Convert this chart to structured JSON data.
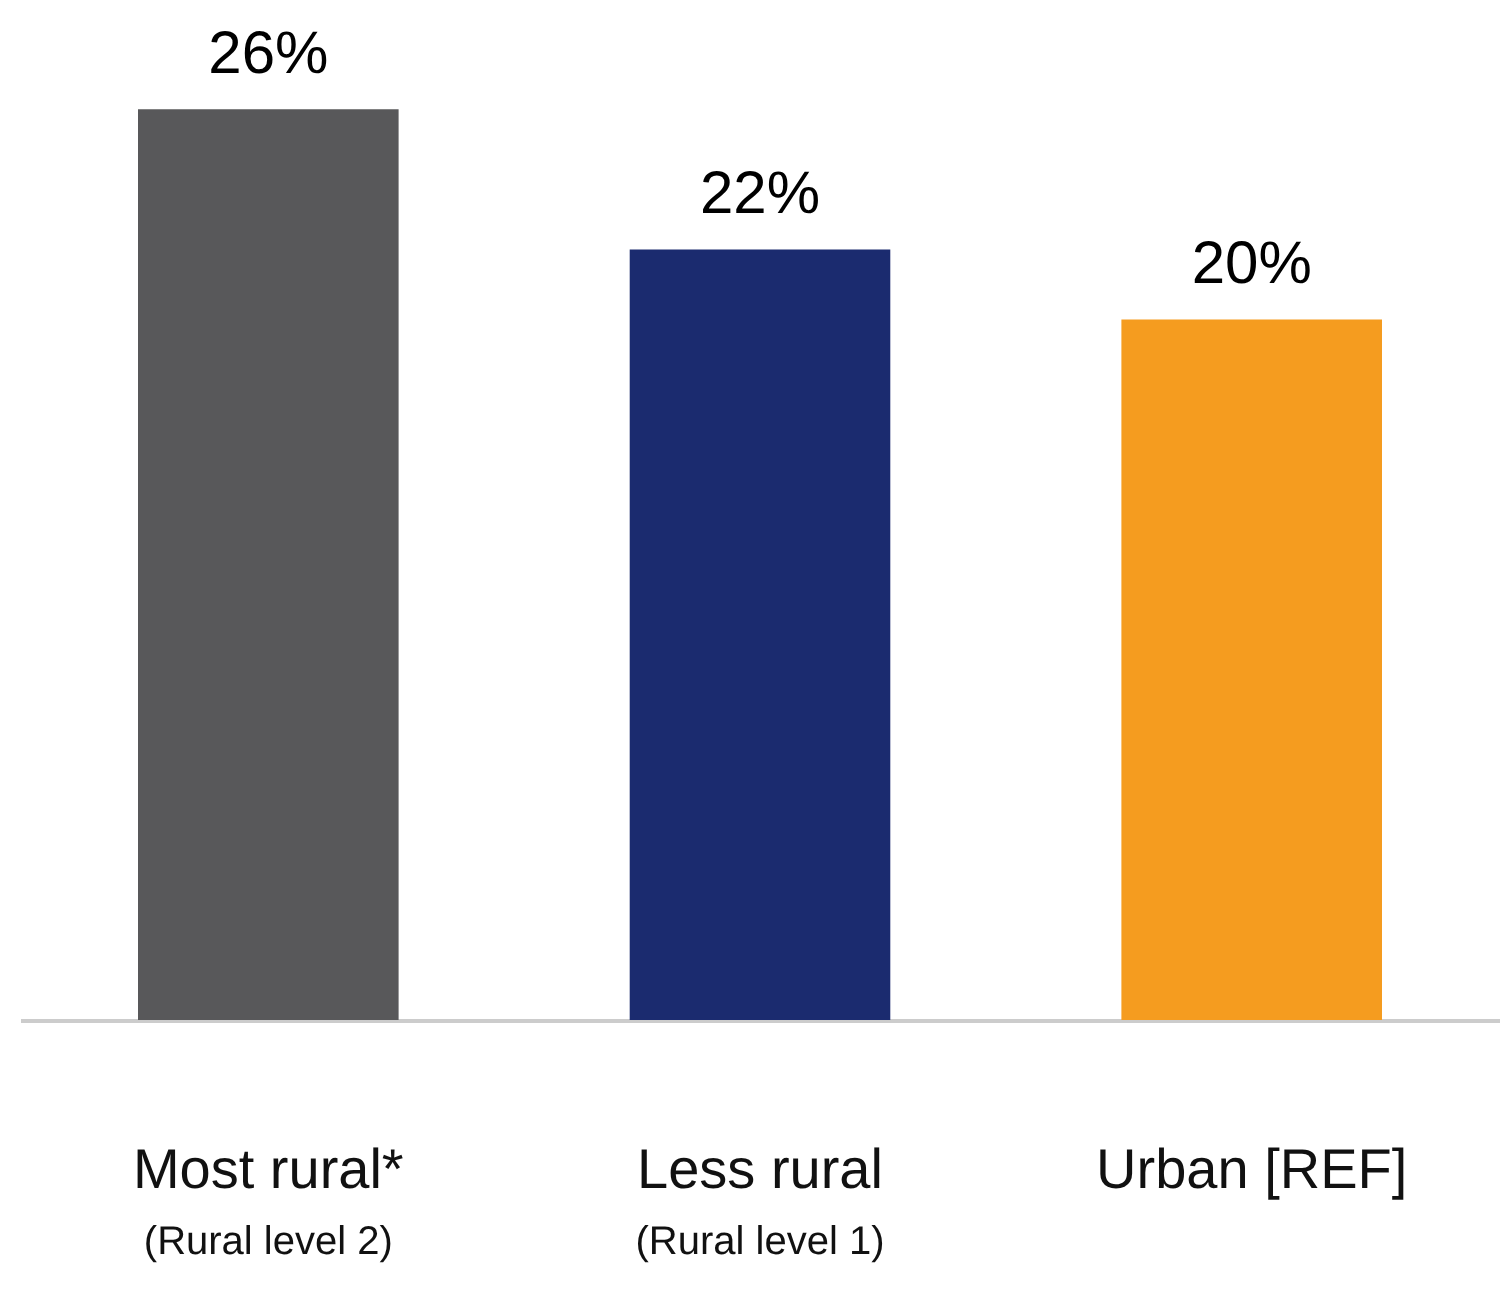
{
  "chart_data": {
    "type": "bar",
    "categories": [
      "Most rural*\n(Rural level 2)",
      "Less rural\n(Rural level 1)",
      "Urban [REF]"
    ],
    "values": [
      26,
      22,
      20
    ],
    "colors": [
      "#58585a",
      "#1b2b6f",
      "#f59c1f"
    ],
    "value_labels": [
      "26%",
      "22%",
      "20%"
    ]
  }
}
